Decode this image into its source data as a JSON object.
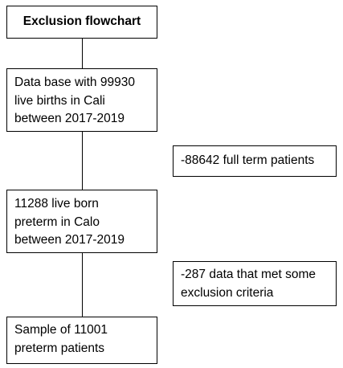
{
  "title": "Exclusion flowchart",
  "nodes": [
    {
      "lines": [
        "Data base with 99930",
        "live births in Cali",
        "between 2017-2019"
      ]
    },
    {
      "lines": [
        "11288 live born",
        "preterm in Calo",
        "between 2017-2019"
      ]
    },
    {
      "lines": [
        "Sample of 11001",
        "preterm patients"
      ]
    }
  ],
  "exclusions": [
    {
      "lines": [
        "-88642 full term patients"
      ]
    },
    {
      "lines": [
        "-287 data that met some",
        "exclusion criteria"
      ]
    }
  ]
}
